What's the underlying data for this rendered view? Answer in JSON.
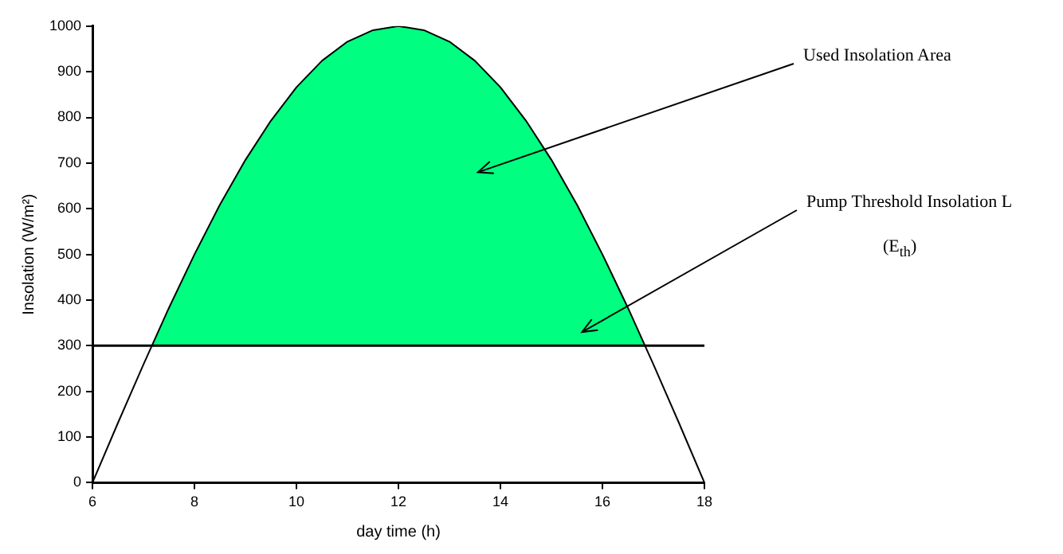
{
  "chart_data": {
    "type": "line",
    "xlabel": "day time (h)",
    "ylabel": "Insolation (W/m²)",
    "xlim": [
      6,
      18
    ],
    "xticks": [
      6,
      8,
      10,
      12,
      14,
      16,
      18
    ],
    "ylim": [
      0,
      1000
    ],
    "yticks": [
      0,
      100,
      200,
      300,
      400,
      500,
      600,
      700,
      800,
      900,
      1000
    ],
    "grid": false,
    "legend": false,
    "marker": "none",
    "line_style": "solid",
    "series": [
      {
        "type": "area",
        "color": "#00ff80",
        "x": [
          7.16,
          7.5,
          8,
          8.5,
          9,
          9.5,
          10,
          10.5,
          11,
          11.5,
          12,
          12.5,
          13,
          13.5,
          14,
          14.5,
          15,
          15.5,
          16,
          16.5,
          16.84
        ],
        "values": [
          300,
          383,
          500,
          609,
          707,
          793,
          866,
          924,
          966,
          991,
          1000,
          991,
          966,
          924,
          866,
          793,
          707,
          609,
          500,
          383,
          300
        ]
      },
      {
        "color": "#000000",
        "x": [
          6,
          6.5,
          7,
          7.5,
          8,
          8.5,
          9,
          9.5,
          10,
          10.5,
          11,
          11.5,
          12,
          12.5,
          13,
          13.5,
          14,
          14.5,
          15,
          15.5,
          16,
          16.5,
          17,
          17.5,
          18
        ],
        "values": [
          0,
          131,
          259,
          383,
          500,
          609,
          707,
          793,
          866,
          924,
          966,
          991,
          1000,
          991,
          966,
          924,
          866,
          793,
          707,
          609,
          500,
          383,
          259,
          131,
          0
        ]
      }
    ],
    "ref_lines": [
      {
        "axis": "y",
        "value": 300,
        "color": "#000000",
        "line_style": "solid"
      }
    ],
    "annotations": [
      "Used Insolation Area",
      "Pump Threshold Insolation L",
      "(E$_{th}$)"
    ]
  }
}
